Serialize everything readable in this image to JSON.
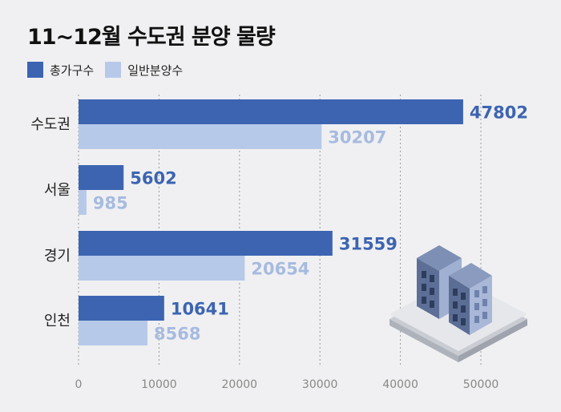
{
  "title": "11~12월 수도권 분양 물량",
  "legend": [
    {
      "label": "총가구수",
      "color": "#3c64b1"
    },
    {
      "label": "일반분양수",
      "color": "#b7c9e9"
    }
  ],
  "illustration": {
    "icon": "apartment-buildings-icon"
  },
  "chart_data": {
    "type": "bar",
    "orientation": "horizontal",
    "title": "11~12월 수도권 분양 물량",
    "categories": [
      "수도권",
      "서울",
      "경기",
      "인천"
    ],
    "series": [
      {
        "name": "총가구수",
        "color": "#3c64b1",
        "label_color": "#3c64b1",
        "values": [
          47802,
          5602,
          31559,
          10641
        ]
      },
      {
        "name": "일반분양수",
        "color": "#b7c9e9",
        "label_color": "#a7bbdf",
        "values": [
          30207,
          985,
          20654,
          8568
        ]
      }
    ],
    "xlim": [
      0,
      50000
    ],
    "ticks": [
      0,
      10000,
      20000,
      30000,
      40000,
      50000
    ],
    "tick_labels": [
      "0",
      "10000",
      "20000",
      "30000",
      "40000",
      "50000"
    ],
    "grid": "vertical dotted",
    "legend_position": "top-left"
  }
}
